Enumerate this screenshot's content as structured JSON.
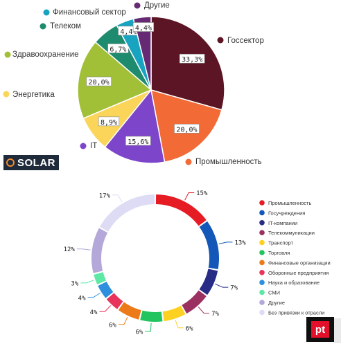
{
  "chart_data": [
    {
      "type": "pie",
      "labels": [
        "Госсектор",
        "Промышленность",
        "IT",
        "Энергетика",
        "Здравоохранение",
        "Телеком",
        "Финансовый сектор",
        "Другие"
      ],
      "values": [
        33.3,
        20.0,
        15.6,
        8.9,
        20.0,
        6.7,
        4.4,
        4.4
      ],
      "value_labels": [
        "33,3%",
        "20,0%",
        "15,6%",
        "8,9%",
        "20,0%",
        "6,7%",
        "4,4%",
        "4,4%"
      ],
      "colors": [
        "#5c1524",
        "#f26a36",
        "#7d45c9",
        "#fbd55a",
        "#a1c038",
        "#1e8a6e",
        "#18a3c1",
        "#652a73"
      ],
      "legend": "labels around the pie",
      "brand": "SOLAR"
    },
    {
      "type": "pie",
      "style": "donut",
      "labels": [
        "Промышленность",
        "Госучреждения",
        "IT-компании",
        "Телекоммуникации",
        "Транспорт",
        "Торговля",
        "Финансовые организации",
        "Оборонные предприятия",
        "Наука и образование",
        "СМИ",
        "Другие",
        "Без привязки к отрасли"
      ],
      "values": [
        15,
        13,
        7,
        7,
        6,
        6,
        6,
        4,
        4,
        3,
        12,
        17
      ],
      "value_labels": [
        "15%",
        "13%",
        "7%",
        "7%",
        "6%",
        "6%",
        "6%",
        "4%",
        "4%",
        "3%",
        "12%",
        "17%"
      ],
      "colors": [
        "#e51c24",
        "#1357b8",
        "#282c86",
        "#9b3160",
        "#fcd121",
        "#21c45f",
        "#ec7a19",
        "#e8335a",
        "#2d8fdd",
        "#5ee8a6",
        "#b4a8da",
        "#dedcf4"
      ],
      "legend": "right",
      "brand": "pt"
    }
  ]
}
